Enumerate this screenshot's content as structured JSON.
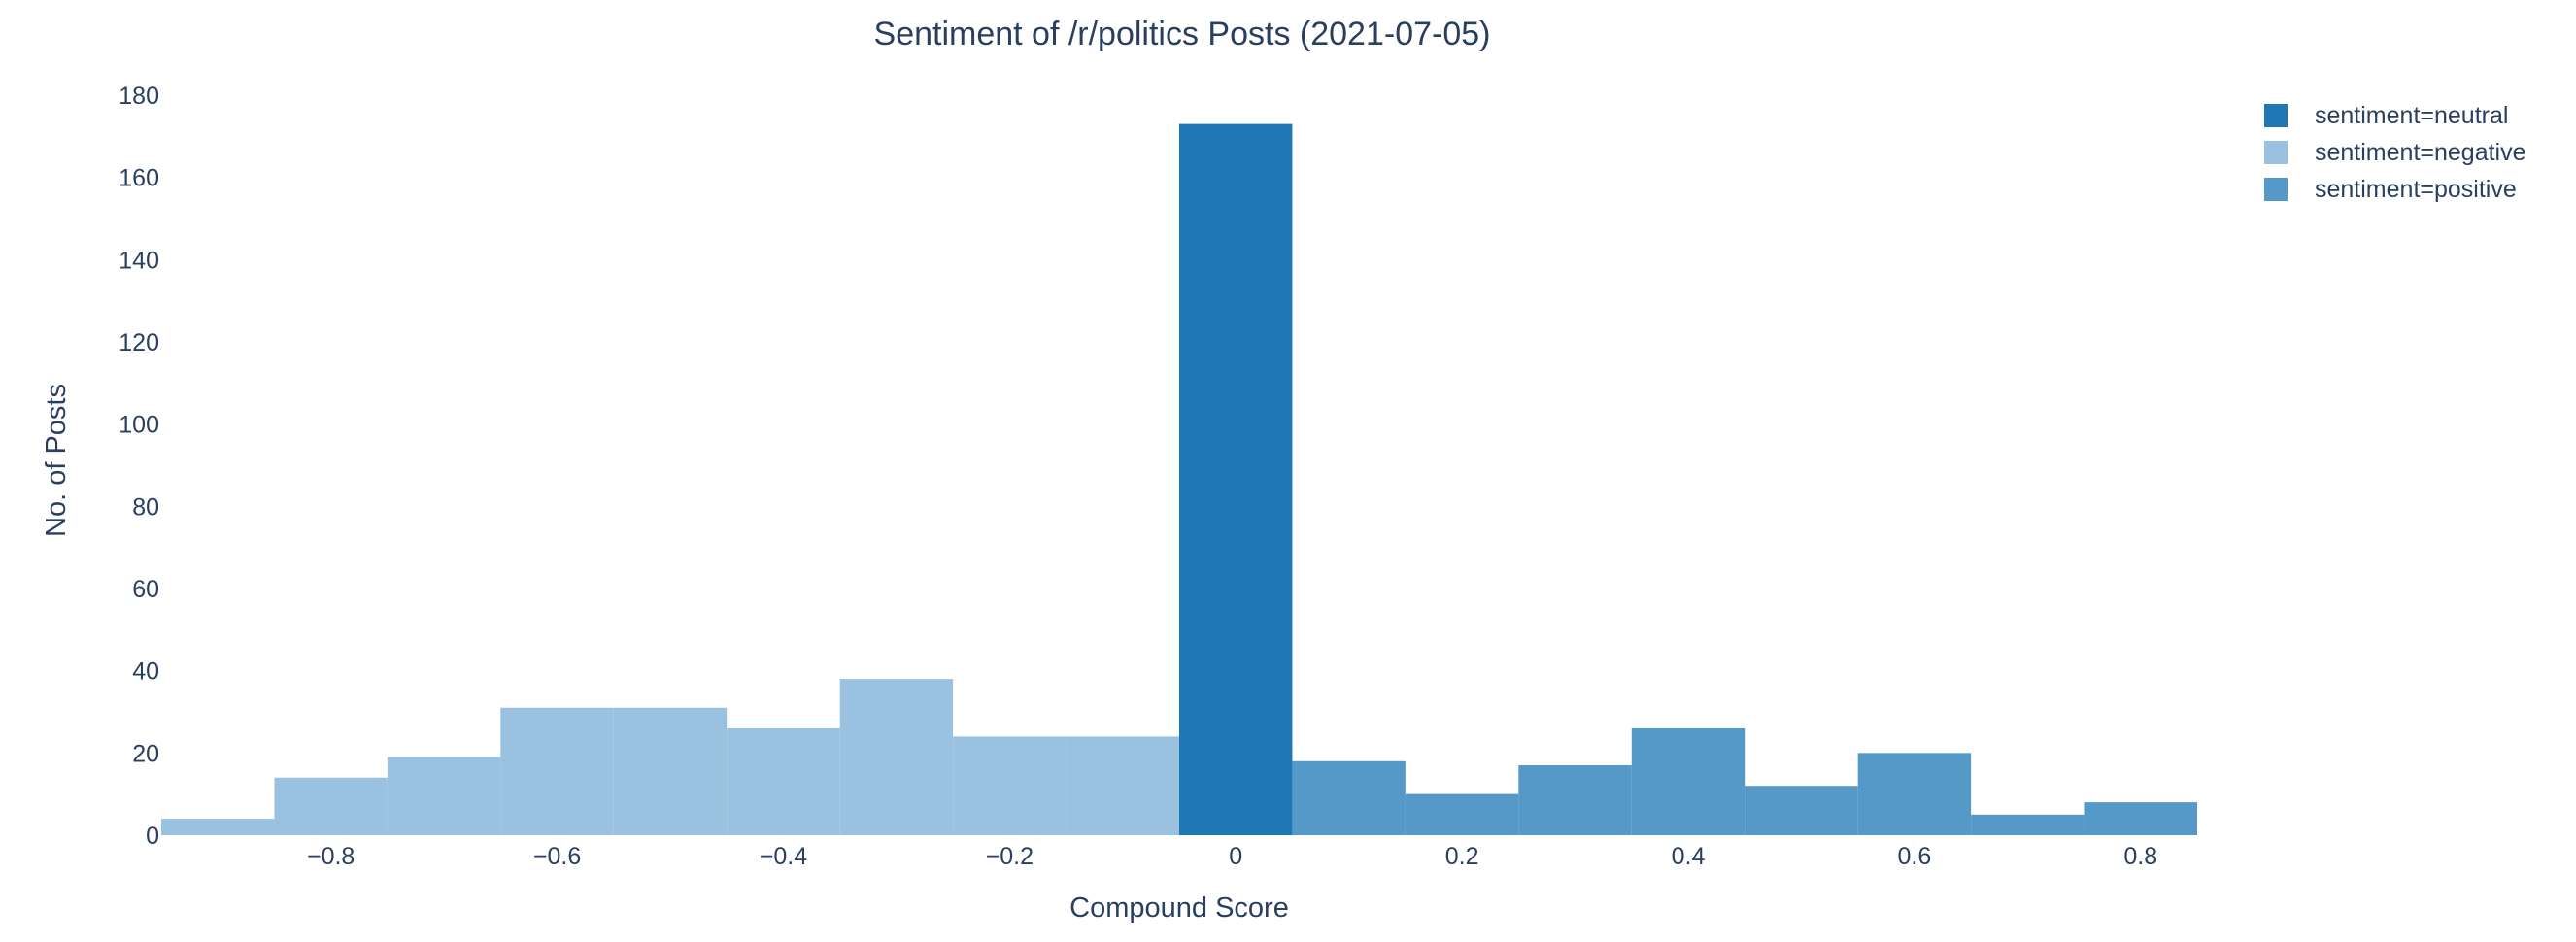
{
  "chart_data": {
    "type": "bar",
    "title": "Sentiment of /r/politics Posts (2021-07-05)",
    "xlabel": "Compound Score",
    "ylabel": "No. of Posts",
    "xlim": [
      -0.95,
      0.85
    ],
    "ylim": [
      0,
      180
    ],
    "bin_width": 0.1,
    "x_ticks": [
      -0.8,
      -0.6,
      -0.4,
      -0.2,
      0,
      0.2,
      0.4,
      0.6,
      0.8
    ],
    "x_tick_labels": [
      "−0.8",
      "−0.6",
      "−0.4",
      "−0.2",
      "0",
      "0.2",
      "0.4",
      "0.6",
      "0.8"
    ],
    "y_ticks": [
      0,
      20,
      40,
      60,
      80,
      100,
      120,
      140,
      160,
      180
    ],
    "y_tick_labels": [
      "0",
      "20",
      "40",
      "60",
      "80",
      "100",
      "120",
      "140",
      "160",
      "180"
    ],
    "grid": false,
    "legend_position": "top-right",
    "series": [
      {
        "name": "sentiment=neutral",
        "color": "#1f77b4",
        "bins": [
          {
            "x0": -0.05,
            "x1": 0.05,
            "count": 173
          }
        ]
      },
      {
        "name": "sentiment=negative",
        "color": "#9ac2e0",
        "bins": [
          {
            "x0": -0.95,
            "x1": -0.85,
            "count": 4
          },
          {
            "x0": -0.85,
            "x1": -0.75,
            "count": 14
          },
          {
            "x0": -0.75,
            "x1": -0.65,
            "count": 19
          },
          {
            "x0": -0.65,
            "x1": -0.55,
            "count": 31
          },
          {
            "x0": -0.55,
            "x1": -0.45,
            "count": 31
          },
          {
            "x0": -0.45,
            "x1": -0.35,
            "count": 26
          },
          {
            "x0": -0.35,
            "x1": -0.25,
            "count": 38
          },
          {
            "x0": -0.25,
            "x1": -0.15,
            "count": 24
          },
          {
            "x0": -0.15,
            "x1": -0.05,
            "count": 24
          }
        ]
      },
      {
        "name": "sentiment=positive",
        "color": "#5599c8",
        "bins": [
          {
            "x0": 0.05,
            "x1": 0.15,
            "count": 18
          },
          {
            "x0": 0.15,
            "x1": 0.25,
            "count": 10
          },
          {
            "x0": 0.25,
            "x1": 0.35,
            "count": 17
          },
          {
            "x0": 0.35,
            "x1": 0.45,
            "count": 26
          },
          {
            "x0": 0.45,
            "x1": 0.55,
            "count": 12
          },
          {
            "x0": 0.55,
            "x1": 0.65,
            "count": 20
          },
          {
            "x0": 0.65,
            "x1": 0.75,
            "count": 5
          },
          {
            "x0": 0.75,
            "x1": 0.85,
            "count": 8
          }
        ]
      }
    ]
  }
}
